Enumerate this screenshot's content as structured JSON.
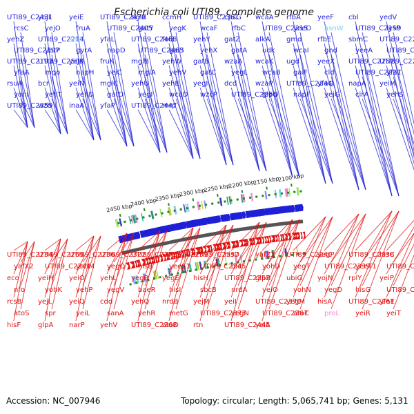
{
  "title": "Escherichia coli UTI89, complete genome",
  "footer": {
    "accession": "Accession: NC_007946",
    "summary": "Topology: circular; Length: 5,065,741 bp; Genes: 5,131"
  },
  "colors": {
    "forward_gene": "#1f1fd6",
    "reverse_gene": "#e01010",
    "rna_gene": "#7fd0f0",
    "pseudo_gene": "#f08ad0",
    "backbone": "#555555",
    "tick": "#1a8a1a"
  },
  "kbp_ticks": [
    "2100 kbp",
    "2150 kbp",
    "2200 kbp",
    "2250 kbp",
    "2300 kbp",
    "2350 kbp",
    "2400 kbp",
    "2450 kbp"
  ],
  "top_genes": [
    "UTI89_C2431",
    "yojI",
    "yeiE",
    "UTI89_C2470",
    "bglX",
    "ccmH",
    "UTI89_C2361",
    "cpsG",
    "wcaA",
    "rfbA",
    "yeeF",
    "cbl",
    "yedV",
    "rcsC",
    "yejO",
    "fruA",
    "UTI89_C2405",
    "gatY",
    "yegK",
    "wcaF",
    "rfbC",
    "UTI89_C2215",
    "yeeO",
    "asnW",
    "UTI89_C2159",
    "lysP",
    "yehZ",
    "UTI89_C2214",
    "serU",
    "yfaL",
    "UTI89_C2468",
    "folE",
    "yehY",
    "gatZ",
    "alkA",
    "gmd",
    "rfbE",
    "sbmC",
    "UTI89_C2222",
    "UTI89_C2197",
    "ybtP",
    "gyrA",
    "napD",
    "UTI89_C2463",
    "galS",
    "yehX",
    "gatA",
    "udk",
    "wcaI",
    "gnd",
    "yeeA",
    "UTI89_C2217",
    "UTI89_C2193",
    "UTI89_C2509",
    "yejK",
    "fruK",
    "mglB",
    "yehW",
    "gatB",
    "wzaA",
    "wcaK",
    "ugd",
    "yeeX",
    "UTI89_C2257",
    "UTI89_C2213",
    "yfaA",
    "mqo",
    "napH",
    "yeiC",
    "mglA",
    "yehV",
    "gatC",
    "yegL",
    "wcaB",
    "galF",
    "cld",
    "UTI89_C2221",
    "yfaT",
    "rsuA",
    "bcr",
    "yeiN",
    "mglC",
    "yehU",
    "yehE",
    "yegI",
    "dcd",
    "wzaP",
    "UTI89_C2244",
    "yfaQ",
    "napA",
    "yeiM",
    "yohI",
    "yehT",
    "yehD",
    "gatD",
    "yegI",
    "wcaD",
    "wzcP",
    "UTI89_C2266",
    "glpQ",
    "napF",
    "yejG",
    "cirA",
    "yehS",
    "UTI89_C2359",
    "wzb",
    "inaA",
    "yfaP",
    "UTI89_C2447",
    "mrp"
  ],
  "bottom_genes": [
    "UTI89_C2234",
    "UTI89_C2269",
    "UTI89_C2236",
    "UTI89_C2322",
    "UTI89_C2272",
    "UTI89_C2239",
    "UTI89_C2337",
    "hisD",
    "yafZ2",
    "UTI89_C2240",
    "yegP",
    "UTI89_C2338",
    "hisC",
    "yafX2",
    "UTI89_C2241",
    "yohM",
    "yegQ",
    "hisB",
    "yeeS1",
    "UTI89_C2245",
    "dld",
    "yohD",
    "yegT",
    "UTI89_C2339",
    "yeeT1",
    "UTI89_C2246",
    "eco",
    "yeiH",
    "yeiO",
    "yehL",
    "yegB",
    "yegE",
    "hisH",
    "UTI89_C2252",
    "glpB",
    "ubiG",
    "yojN",
    "rplY",
    "yeiP",
    "nfo",
    "yohK",
    "yehP",
    "yegV",
    "baeR",
    "hisI",
    "sbcB",
    "nrdA",
    "yeiO",
    "yohN",
    "yegD",
    "hisG",
    "UTI89_C2254",
    "rcsB",
    "yejL",
    "yeiQ",
    "cdd",
    "yehQ",
    "nrdB",
    "yejM",
    "yeiI",
    "UTI89_C2370",
    "yegM",
    "hisA",
    "UTI89_C2261",
    "yfaE",
    "atoS",
    "spr",
    "yeiL",
    "sanA",
    "yehR",
    "metG",
    "UTI89_C2373",
    "yegN",
    "UTI89_C2267",
    "atoC",
    "proL",
    "yeiR",
    "yeiT",
    "hisF",
    "glpA",
    "narP",
    "yehV",
    "UTI89_C2268",
    "atoD",
    "rtn",
    "UTI89_C2445",
    "yeiA"
  ]
}
